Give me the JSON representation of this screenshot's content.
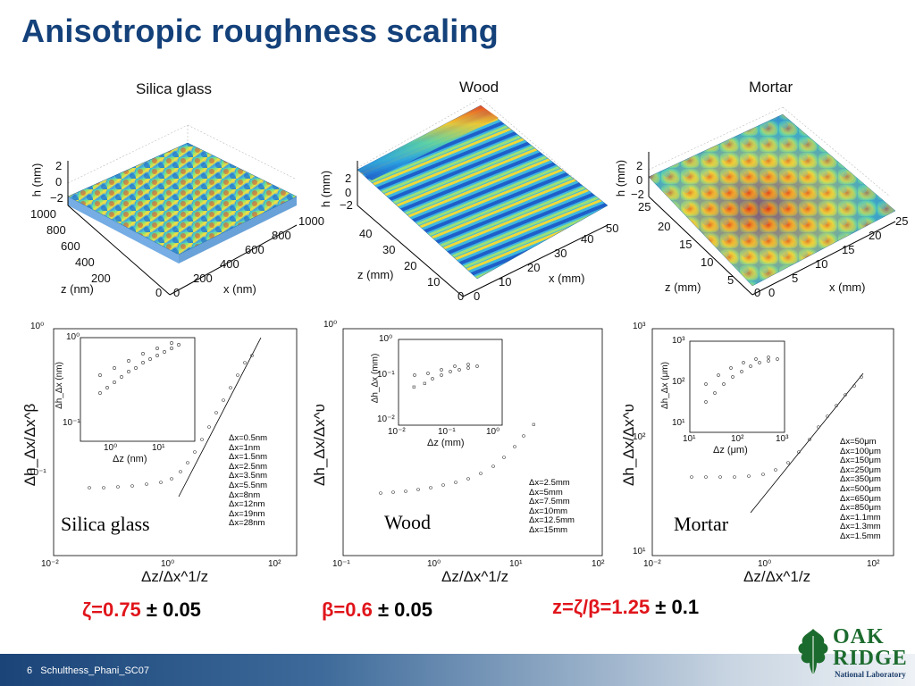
{
  "title": "Anisotropic roughness scaling",
  "surfaces": [
    {
      "title": "Silica glass",
      "h_label": "h (nm)",
      "h_ticks": [
        "2",
        "0",
        "−2"
      ],
      "z_label": "z (nm)",
      "z_ticks": [
        "1000",
        "800",
        "600",
        "400",
        "200",
        "0"
      ],
      "x_label": "x (nm)",
      "x_ticks": [
        "0",
        "200",
        "400",
        "600",
        "800",
        "1000"
      ]
    },
    {
      "title": "Wood",
      "h_label": "h (mm)",
      "h_ticks": [
        "2",
        "0",
        "−2"
      ],
      "z_label": "z (mm)",
      "z_ticks": [
        "40",
        "30",
        "20",
        "10",
        "0"
      ],
      "x_label": "x (mm)",
      "x_ticks": [
        "0",
        "10",
        "20",
        "30",
        "40",
        "50"
      ]
    },
    {
      "title": "Mortar",
      "h_label": "h (mm)",
      "h_ticks": [
        "2",
        "0",
        "−2"
      ],
      "z_label": "z (mm)",
      "z_ticks": [
        "25",
        "20",
        "15",
        "10",
        "5",
        "0"
      ],
      "x_label": "x (mm)",
      "x_ticks": [
        "0",
        "5",
        "10",
        "15",
        "20",
        "25"
      ]
    }
  ],
  "scaling_plots": [
    {
      "sample": "Silica glass",
      "ylabel": "Δh_Δx/Δx^β",
      "xlabel": "Δz/Δx^1/z",
      "x_ticks": [
        "10⁻²",
        "10⁰",
        "10²"
      ],
      "y_ticks": [
        "10⁰",
        "10⁻¹"
      ],
      "inset_ylabel": "Δh_Δx (nm)",
      "inset_xlabel": "Δz (nm)",
      "inset_x_ticks": [
        "10⁰",
        "10¹"
      ],
      "inset_y_ticks": [
        "10⁰",
        "10⁻¹"
      ],
      "legend": [
        "Δx=0.5nm",
        "Δx=1nm",
        "Δx=1.5nm",
        "Δx=2.5nm",
        "Δx=3.5nm",
        "Δx=5.5nm",
        "Δx=8nm",
        "Δx=12nm",
        "Δx=19nm",
        "Δx=28nm"
      ]
    },
    {
      "sample": "Wood",
      "ylabel": "Δh_Δx/Δx^υ",
      "xlabel": "Δz/Δx^1/z",
      "x_ticks": [
        "10⁻¹",
        "10⁰",
        "10¹",
        "10²"
      ],
      "y_ticks": [
        "10⁰"
      ],
      "inset_ylabel": "Δh_Δx (mm)",
      "inset_xlabel": "Δz (mm)",
      "inset_x_ticks": [
        "10⁻²",
        "10⁻¹",
        "10⁰"
      ],
      "inset_y_ticks": [
        "10⁰",
        "10⁻¹",
        "10⁻²"
      ],
      "legend": [
        "Δx=2.5mm",
        "Δx=5mm",
        "Δx=7.5mm",
        "Δx=10mm",
        "Δx=12.5mm",
        "Δx=15mm"
      ]
    },
    {
      "sample": "Mortar",
      "ylabel": "Δh_Δx/Δx^υ",
      "xlabel": "Δz/Δx^1/z",
      "x_ticks": [
        "10⁻²",
        "10⁰",
        "10²"
      ],
      "y_ticks": [
        "10³",
        "10²",
        "10¹"
      ],
      "inset_ylabel": "Δh_Δx (μm)",
      "inset_xlabel": "Δz (μm)",
      "inset_x_ticks": [
        "10¹",
        "10²",
        "10³"
      ],
      "inset_y_ticks": [
        "10³",
        "10²",
        "10¹"
      ],
      "legend": [
        "Δx=50μm",
        "Δx=100μm",
        "Δx=150μm",
        "Δx=250μm",
        "Δx=350μm",
        "Δx=500μm",
        "Δx=650μm",
        "Δx=850μm",
        "Δx=1.1mm",
        "Δx=1.3mm",
        "Δx=1.5mm"
      ]
    }
  ],
  "results": [
    {
      "red": "ζ=0.75",
      "black": " ± 0.05"
    },
    {
      "red": "β=0.6",
      "black": " ± 0.05"
    },
    {
      "red": "z=ζ/β=1.25",
      "black": " ± 0.1"
    }
  ],
  "footer": {
    "page": "6",
    "text": "Schulthess_Phani_SC07"
  },
  "logo": {
    "line1": "OAK",
    "line2": "RIDGE",
    "line3": "National Laboratory"
  },
  "colors": {
    "title": "#14417a",
    "accent_red": "#e0151b",
    "logo_green": "#1c6b2e"
  }
}
